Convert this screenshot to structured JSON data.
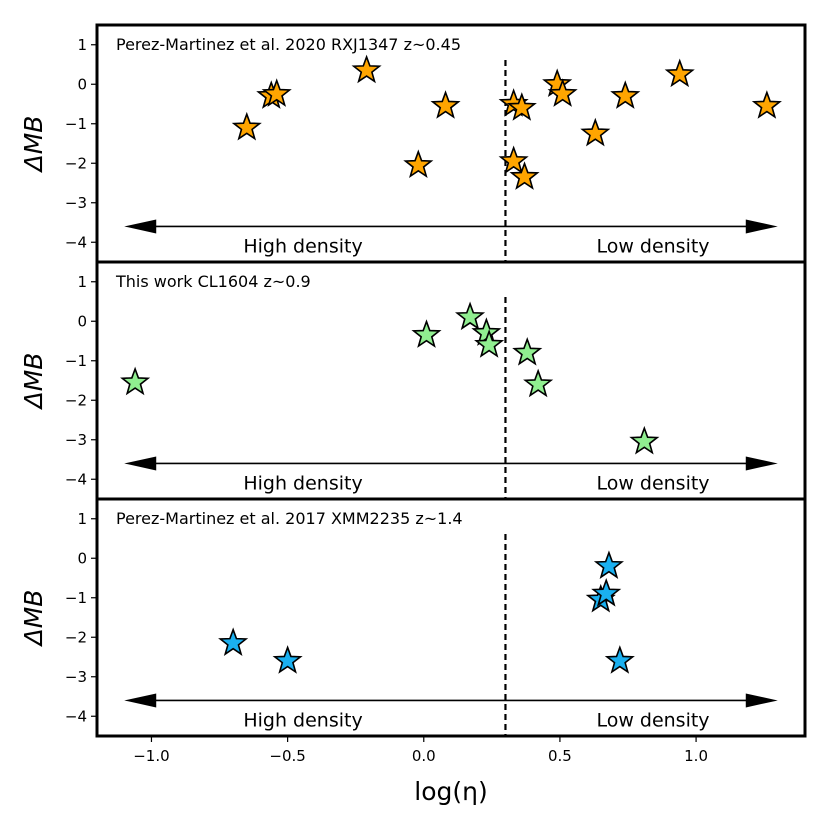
{
  "chart_data": {
    "type": "scatter",
    "xlabel": "log(η)",
    "ylabel": "ΔMB",
    "xlim": [
      -1.2,
      1.4
    ],
    "ylim": [
      -4.5,
      1.5
    ],
    "x_ticks": [
      -1.0,
      -0.5,
      0.0,
      0.5,
      1.0
    ],
    "x_tick_labels": [
      "−1.0",
      "−0.5",
      "0.0",
      "0.5",
      "1.0"
    ],
    "y_ticks": [
      1,
      0,
      -1,
      -2,
      -3,
      -4
    ],
    "y_tick_labels": [
      "1",
      "0",
      "−1",
      "−2",
      "−3",
      "−4"
    ],
    "threshold_x": 0.3,
    "arrow_range": [
      -1.1,
      1.3
    ],
    "arrow_y": -3.6,
    "left_region_label": "High density",
    "right_region_label": "Low density",
    "marker": "star",
    "panels": [
      {
        "title": "Perez-Martinez et al. 2020 RXJ1347 z~0.45",
        "color": "#FFA500",
        "points": [
          {
            "x": -0.65,
            "y": -1.1
          },
          {
            "x": -0.56,
            "y": -0.3
          },
          {
            "x": -0.54,
            "y": -0.25
          },
          {
            "x": -0.21,
            "y": 0.35
          },
          {
            "x": -0.02,
            "y": -2.05
          },
          {
            "x": 0.08,
            "y": -0.55
          },
          {
            "x": 0.33,
            "y": -0.5
          },
          {
            "x": 0.33,
            "y": -1.95
          },
          {
            "x": 0.36,
            "y": -0.6
          },
          {
            "x": 0.37,
            "y": -2.35
          },
          {
            "x": 0.49,
            "y": 0.0
          },
          {
            "x": 0.51,
            "y": -0.25
          },
          {
            "x": 0.63,
            "y": -1.25
          },
          {
            "x": 0.74,
            "y": -0.3
          },
          {
            "x": 0.94,
            "y": 0.25
          },
          {
            "x": 1.26,
            "y": -0.55
          }
        ]
      },
      {
        "title": "This work CL1604 z~0.9",
        "color": "#90EE90",
        "points": [
          {
            "x": -1.06,
            "y": -1.55
          },
          {
            "x": 0.01,
            "y": -0.35
          },
          {
            "x": 0.17,
            "y": 0.1
          },
          {
            "x": 0.23,
            "y": -0.3
          },
          {
            "x": 0.24,
            "y": -0.6
          },
          {
            "x": 0.38,
            "y": -0.8
          },
          {
            "x": 0.42,
            "y": -1.6
          },
          {
            "x": 0.81,
            "y": -3.05
          }
        ]
      },
      {
        "title": "Perez-Martinez et al. 2017 XMM2235 z~1.4",
        "color": "#1AB0F0",
        "points": [
          {
            "x": -0.7,
            "y": -2.15
          },
          {
            "x": -0.5,
            "y": -2.6
          },
          {
            "x": 0.65,
            "y": -1.05
          },
          {
            "x": 0.67,
            "y": -0.9
          },
          {
            "x": 0.68,
            "y": -0.2
          },
          {
            "x": 0.72,
            "y": -2.6
          }
        ]
      }
    ]
  }
}
